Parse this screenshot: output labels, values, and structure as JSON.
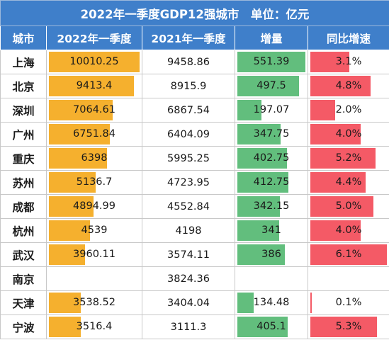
{
  "title": "2022年一季度GDP12强城市　单位：亿元",
  "colors": {
    "header_bg": "#3F7FCA",
    "header_text": "#ffffff",
    "bar_2022": "#F5B02E",
    "bar_increase": "#62BE7D",
    "bar_growth": "#F45A66"
  },
  "headers": [
    "城市",
    "2022年一季度",
    "2021年一季度",
    "增量",
    "同比增速"
  ],
  "chart_data": {
    "type": "table",
    "title": "2022年一季度GDP12强城市　单位：亿元",
    "columns": [
      "城市",
      "2022年一季度",
      "2021年一季度",
      "增量",
      "同比增速"
    ],
    "bar_scales": {
      "gdp2022_max": 10010.25,
      "increase_max": 551.39,
      "growth_max": 6.1
    },
    "rows": [
      {
        "city": "上海",
        "gdp2022": "10010.25",
        "gdp2021": "9458.86",
        "increase": "551.39",
        "growth": "3.1%",
        "gdp2022_num": 10010.25,
        "increase_num": 551.39,
        "growth_num": 3.1
      },
      {
        "city": "北京",
        "gdp2022": "9413.4",
        "gdp2021": "8915.9",
        "increase": "497.5",
        "growth": "4.8%",
        "gdp2022_num": 9413.4,
        "increase_num": 497.5,
        "growth_num": 4.8
      },
      {
        "city": "深圳",
        "gdp2022": "7064.61",
        "gdp2021": "6867.54",
        "increase": "197.07",
        "growth": "2.0%",
        "gdp2022_num": 7064.61,
        "increase_num": 197.07,
        "growth_num": 2.0
      },
      {
        "city": "广州",
        "gdp2022": "6751.84",
        "gdp2021": "6404.09",
        "increase": "347.75",
        "growth": "4.0%",
        "gdp2022_num": 6751.84,
        "increase_num": 347.75,
        "growth_num": 4.0
      },
      {
        "city": "重庆",
        "gdp2022": "6398",
        "gdp2021": "5995.25",
        "increase": "402.75",
        "growth": "5.2%",
        "gdp2022_num": 6398,
        "increase_num": 402.75,
        "growth_num": 5.2
      },
      {
        "city": "苏州",
        "gdp2022": "5136.7",
        "gdp2021": "4723.95",
        "increase": "412.75",
        "growth": "4.4%",
        "gdp2022_num": 5136.7,
        "increase_num": 412.75,
        "growth_num": 4.4
      },
      {
        "city": "成都",
        "gdp2022": "4894.99",
        "gdp2021": "4552.84",
        "increase": "342.15",
        "growth": "5.0%",
        "gdp2022_num": 4894.99,
        "increase_num": 342.15,
        "growth_num": 5.0
      },
      {
        "city": "杭州",
        "gdp2022": "4539",
        "gdp2021": "4198",
        "increase": "341",
        "growth": "4.0%",
        "gdp2022_num": 4539,
        "increase_num": 341,
        "growth_num": 4.0
      },
      {
        "city": "武汉",
        "gdp2022": "3960.11",
        "gdp2021": "3574.11",
        "increase": "386",
        "growth": "6.1%",
        "gdp2022_num": 3960.11,
        "increase_num": 386,
        "growth_num": 6.1
      },
      {
        "city": "南京",
        "gdp2022": "",
        "gdp2021": "3824.36",
        "increase": "",
        "growth": "",
        "gdp2022_num": null,
        "increase_num": null,
        "growth_num": null
      },
      {
        "city": "天津",
        "gdp2022": "3538.52",
        "gdp2021": "3404.04",
        "increase": "134.48",
        "growth": "0.1%",
        "gdp2022_num": 3538.52,
        "increase_num": 134.48,
        "growth_num": 0.1
      },
      {
        "city": "宁波",
        "gdp2022": "3516.4",
        "gdp2021": "3111.3",
        "increase": "405.1",
        "growth": "5.3%",
        "gdp2022_num": 3516.4,
        "increase_num": 405.1,
        "growth_num": 5.3
      }
    ]
  }
}
